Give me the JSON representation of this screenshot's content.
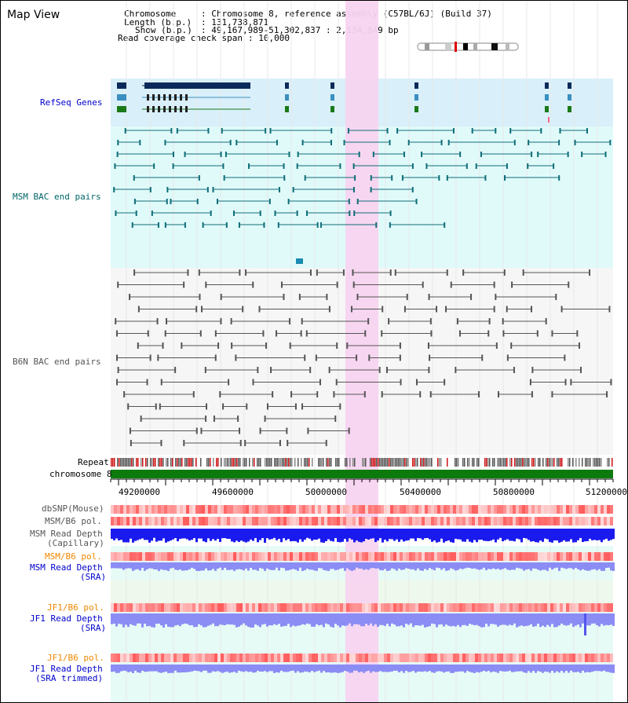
{
  "view_title": "Map View",
  "info": {
    "chromosome_label": "Chromosome",
    "chromosome_value": ": Chromosome 8, reference assembly (C57BL/6J) (Build 37)",
    "length_label": "Length (b.p.)",
    "length_value": ": 131,738,871",
    "show_label": "Show (b.p.)",
    "show_value": ": 49,167,989-51,302,837 : 2,134,849 bp",
    "coverage_label": "Read coverage check span",
    "coverage_value": ": 10,000"
  },
  "tracks": {
    "refseq": "RefSeq Genes",
    "msm_bac": "MSM BAC end pairs",
    "b6n_bac": "B6N BAC end pairs",
    "repeat": "Repeat",
    "chromosome": "chromosome 8",
    "dbsnp": "dbSNP(Mouse)",
    "msm_b6_pol_1": "MSM/B6 pol.",
    "msm_read_depth_cap_1": "MSM Read Depth",
    "msm_read_depth_cap_2": "(Capillary)",
    "msm_b6_pol_2": "MSM/B6 pol.",
    "msm_read_depth_sra_1": "MSM Read Depth",
    "msm_read_depth_sra_2": "(SRA)",
    "jf1_b6_pol_1": "JF1/B6 pol.",
    "jf1_read_depth_sra_1": "JF1 Read Depth",
    "jf1_read_depth_sra_2": "(SRA)",
    "jf1_b6_pol_2": "JF1/B6 pol.",
    "jf1_read_depth_trim_1": "JF1 Read Depth",
    "jf1_read_depth_trim_2": "(SRA trimmed)"
  },
  "axis_ticks": [
    "49200000",
    "49600000",
    "50000000",
    "50400000",
    "50800000",
    "51200000"
  ],
  "colors": {
    "refseq_bg": "#d9effa",
    "msm_bac_bg": "#e0fafa",
    "b6n_bac_bg": "#f6f6f6",
    "highlight": "#f7d4f0",
    "chromosome_bar": "#0c7a0c",
    "label_blue": "#0000cc",
    "label_teal": "#006666",
    "label_gray": "#555555",
    "label_orange": "#ee8800",
    "depth_blue": "#1a1aee",
    "depth_lavender": "#8c8cf5"
  }
}
